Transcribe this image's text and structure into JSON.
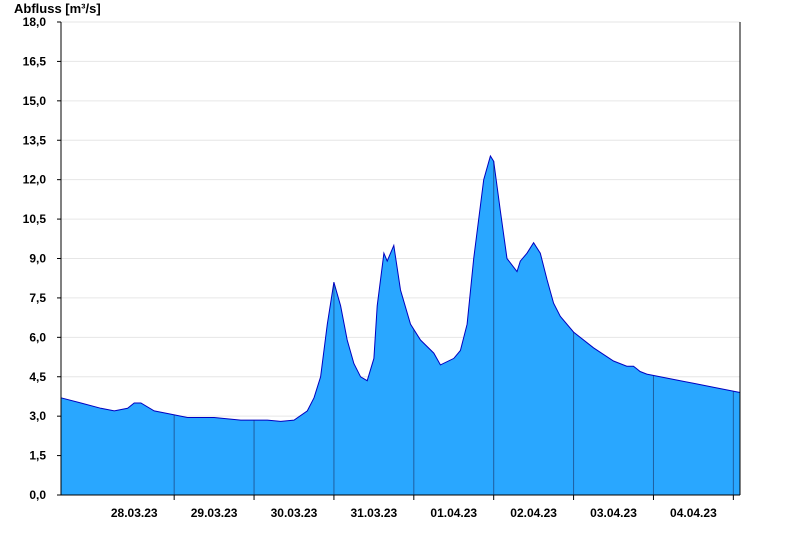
{
  "chart_data": {
    "type": "area",
    "title": "",
    "ylabel": "Abfluss [m³/s]",
    "xlabel": "",
    "ylim": [
      0,
      18
    ],
    "y_ticks": [
      "0,0",
      "1,5",
      "3,0",
      "4,5",
      "6,0",
      "7,5",
      "9,0",
      "10,5",
      "12,0",
      "13,5",
      "15,0",
      "16,5",
      "18,0"
    ],
    "x_ticks": [
      "28.03.23",
      "29.03.23",
      "30.03.23",
      "31.03.23",
      "01.04.23",
      "02.04.23",
      "03.04.23",
      "04.04.23"
    ],
    "x_domain": [
      "2023-03-27T14:00",
      "2023-04-05T02:00"
    ],
    "grid": true,
    "colors": {
      "fill": "#29a7ff",
      "line": "#0000c0",
      "grid": "#e6e6e6"
    },
    "series": [
      {
        "x": [
          "2023-03-27T14:00",
          "2023-03-27T20:00",
          "2023-03-28T02:00",
          "2023-03-28T06:00",
          "2023-03-28T10:00",
          "2023-03-28T12:00",
          "2023-03-28T14:00",
          "2023-03-28T18:00",
          "2023-03-28T22:00",
          "2023-03-29T04:00",
          "2023-03-29T12:00",
          "2023-03-29T20:00",
          "2023-03-30T04:00",
          "2023-03-30T08:00",
          "2023-03-30T12:00",
          "2023-03-30T16:00",
          "2023-03-30T18:00",
          "2023-03-30T20:00",
          "2023-03-30T22:00",
          "2023-03-31T00:00",
          "2023-03-31T02:00",
          "2023-03-31T04:00",
          "2023-03-31T06:00",
          "2023-03-31T08:00",
          "2023-03-31T10:00",
          "2023-03-31T12:00",
          "2023-03-31T13:00",
          "2023-03-31T15:00",
          "2023-03-31T16:00",
          "2023-03-31T18:00",
          "2023-03-31T20:00",
          "2023-03-31T23:00",
          "2023-04-01T02:00",
          "2023-04-01T06:00",
          "2023-04-01T08:00",
          "2023-04-01T12:00",
          "2023-04-01T14:00",
          "2023-04-01T16:00",
          "2023-04-01T18:00",
          "2023-04-01T21:00",
          "2023-04-01T23:00",
          "2023-04-02T00:00",
          "2023-04-02T02:00",
          "2023-04-02T04:00",
          "2023-04-02T07:00",
          "2023-04-02T08:00",
          "2023-04-02T10:00",
          "2023-04-02T12:00",
          "2023-04-02T14:00",
          "2023-04-02T16:00",
          "2023-04-02T18:00",
          "2023-04-02T20:00",
          "2023-04-03T00:00",
          "2023-04-03T06:00",
          "2023-04-03T12:00",
          "2023-04-03T16:00",
          "2023-04-03T18:00",
          "2023-04-03T20:00",
          "2023-04-03T22:00",
          "2023-04-04T06:00",
          "2023-04-04T12:00",
          "2023-04-04T18:00",
          "2023-04-05T02:00"
        ],
        "values": [
          3.7,
          3.5,
          3.3,
          3.2,
          3.3,
          3.5,
          3.5,
          3.2,
          3.1,
          2.95,
          2.95,
          2.85,
          2.85,
          2.8,
          2.85,
          3.2,
          3.7,
          4.5,
          6.5,
          8.1,
          7.2,
          5.9,
          5.0,
          4.5,
          4.35,
          5.2,
          7.2,
          9.2,
          8.9,
          9.5,
          7.8,
          6.5,
          5.9,
          5.4,
          4.95,
          5.2,
          5.5,
          6.5,
          9.0,
          12.0,
          12.9,
          12.7,
          10.8,
          9.0,
          8.5,
          8.9,
          9.2,
          9.6,
          9.2,
          8.2,
          7.3,
          6.8,
          6.2,
          5.6,
          5.1,
          4.9,
          4.9,
          4.7,
          4.6,
          4.4,
          4.25,
          4.1,
          3.9
        ]
      }
    ]
  }
}
